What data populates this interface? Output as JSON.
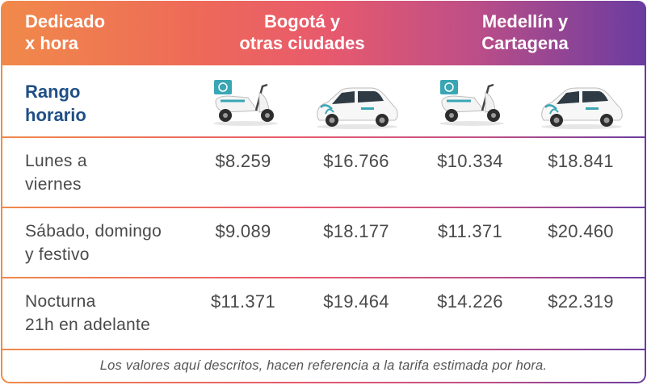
{
  "header": {
    "title": "Dedicado\nx hora",
    "group_1": "Bogotá y\notras ciudades",
    "group_2": "Medellín y\nCartagena"
  },
  "subheader": {
    "range_label": "Rango\nhorario",
    "vehicles": [
      "scooter-icon",
      "car-icon",
      "scooter-icon",
      "car-icon"
    ]
  },
  "rows": [
    {
      "label": "Lunes a\nviernes",
      "prices": [
        "$8.259",
        "$16.766",
        "$10.334",
        "$18.841"
      ]
    },
    {
      "label": "Sábado, domingo\ny festivo",
      "prices": [
        "$9.089",
        "$18.177",
        "$11.371",
        "$20.460"
      ]
    },
    {
      "label": "Nocturna\n21h en adelante",
      "prices": [
        "$11.371",
        "$19.464",
        "$14.226",
        "$22.319"
      ]
    }
  ],
  "footer": {
    "note": "Los valores aquí descritos, hacen referencia a la tarifa estimada por hora."
  },
  "colors": {
    "gradient_start": "#f08a4a",
    "gradient_end": "#6a3ca0",
    "range_label": "#1f4f86",
    "vehicle_teal": "#3aa6b4"
  }
}
